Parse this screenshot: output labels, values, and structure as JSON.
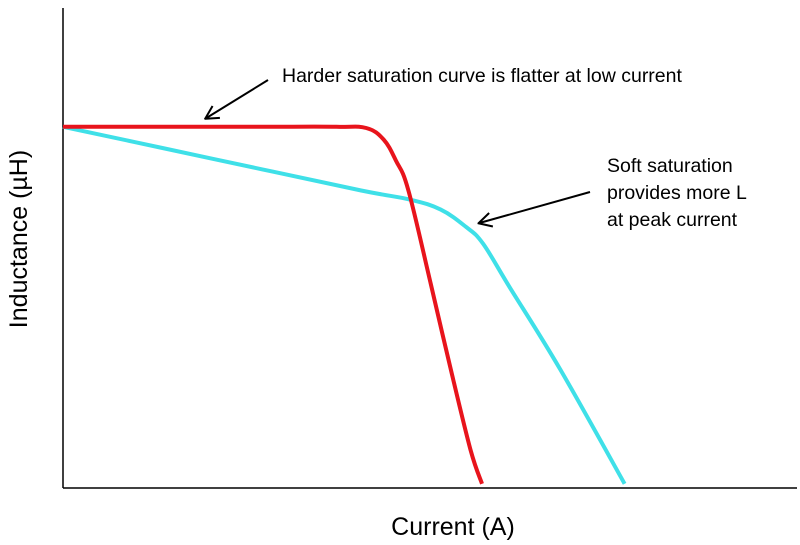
{
  "chart_data": {
    "type": "line",
    "xlabel": "Current (A)",
    "ylabel": "Inductance (µH)",
    "xlim": [
      0,
      10
    ],
    "ylim": [
      0,
      10
    ],
    "ticks": "none",
    "grid": false,
    "series": [
      {
        "color": "#e8141c",
        "x": [
          0,
          2,
          4,
          5.5,
          6.1,
          6.45,
          6.7,
          6.95,
          7.4,
          7.8,
          8.2,
          8.43
        ],
        "y": [
          8.5,
          8.5,
          8.5,
          8.5,
          8.47,
          8.2,
          7.7,
          7.0,
          4.8,
          2.8,
          0.9,
          0.1
        ]
      },
      {
        "color": "#3fe0e8",
        "x": [
          0,
          2,
          4,
          6,
          7.0,
          7.6,
          8.1,
          8.45,
          9.0,
          10.0,
          11.3
        ],
        "y": [
          8.5,
          8.0,
          7.5,
          7.0,
          6.78,
          6.55,
          6.15,
          5.75,
          4.7,
          2.8,
          0.1
        ]
      }
    ],
    "annotations": [
      {
        "lines": [
          "Harder saturation curve is flatter at low current"
        ],
        "points_to": [
          2.8,
          8.5
        ]
      },
      {
        "lines": [
          "Soft saturation",
          "provides more L",
          "at peak current"
        ],
        "points_to": [
          8.4,
          5.9
        ]
      }
    ]
  }
}
